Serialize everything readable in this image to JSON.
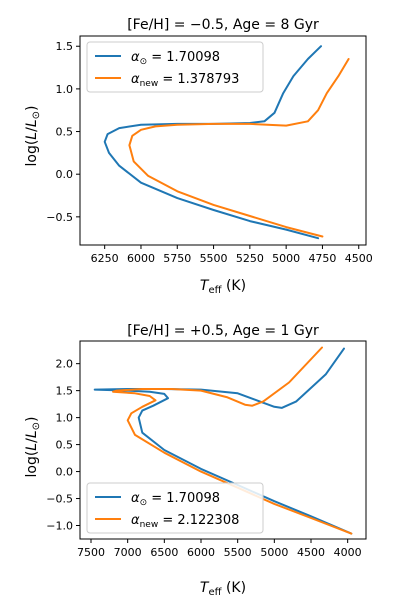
{
  "chart_data": [
    {
      "type": "line",
      "title": "[Fe/H] = −0.5,  Age = 8 Gyr",
      "xlabel": "T_eff (K)",
      "ylabel": "log(L/L⊙)",
      "x_inverted": true,
      "xlim": [
        6420,
        4450
      ],
      "ylim": [
        -0.83,
        1.62
      ],
      "xticks": [
        6250,
        6000,
        5750,
        5500,
        5250,
        5000,
        4750,
        4500
      ],
      "xtick_labels": [
        "6250",
        "6000",
        "5750",
        "5500",
        "5250",
        "5000",
        "4750",
        "4500"
      ],
      "yticks": [
        -0.5,
        0.0,
        0.5,
        1.0,
        1.5
      ],
      "ytick_labels": [
        "−0.5",
        "0.0",
        "0.5",
        "1.0",
        "1.5"
      ],
      "legend_position": "upper-left",
      "series": [
        {
          "name": "α⊙ = 1.70098",
          "label_parts": {
            "symbol": "α",
            "sub": "⊙",
            "value": "= 1.70098"
          },
          "color": "#1f77b4",
          "x": [
            4780,
            5000,
            5250,
            5500,
            5750,
            6000,
            6150,
            6220,
            6250,
            6230,
            6150,
            6000,
            5750,
            5500,
            5250,
            5150,
            5080,
            5020,
            4950,
            4850,
            4760
          ],
          "y": [
            -0.75,
            -0.65,
            -0.55,
            -0.42,
            -0.28,
            -0.1,
            0.1,
            0.25,
            0.38,
            0.47,
            0.54,
            0.58,
            0.59,
            0.59,
            0.6,
            0.62,
            0.72,
            0.95,
            1.15,
            1.35,
            1.5
          ]
        },
        {
          "name": "αnew = 1.378793",
          "label_parts": {
            "symbol": "α",
            "sub": "new",
            "value": "= 1.378793"
          },
          "color": "#ff7f0e",
          "x": [
            4750,
            5000,
            5250,
            5500,
            5750,
            5950,
            6050,
            6080,
            6060,
            6000,
            5900,
            5750,
            5500,
            5250,
            5000,
            4850,
            4780,
            4720,
            4640,
            4570
          ],
          "y": [
            -0.73,
            -0.62,
            -0.49,
            -0.36,
            -0.2,
            -0.02,
            0.15,
            0.34,
            0.45,
            0.52,
            0.56,
            0.58,
            0.59,
            0.59,
            0.57,
            0.62,
            0.75,
            0.95,
            1.15,
            1.35
          ]
        }
      ]
    },
    {
      "type": "line",
      "title": "[Fe/H] = +0.5,  Age = 1 Gyr",
      "xlabel": "T_eff (K)",
      "ylabel": "log(L/L⊙)",
      "x_inverted": true,
      "xlim": [
        7650,
        3750
      ],
      "ylim": [
        -1.25,
        2.42
      ],
      "xticks": [
        7500,
        7000,
        6500,
        6000,
        5500,
        5000,
        4500,
        4000
      ],
      "xtick_labels": [
        "7500",
        "7000",
        "6500",
        "6000",
        "5500",
        "5000",
        "4500",
        "4000"
      ],
      "yticks": [
        -1.0,
        -0.5,
        0.0,
        0.5,
        1.0,
        1.5,
        2.0
      ],
      "ytick_labels": [
        "−1.0",
        "−0.5",
        "0.0",
        "0.5",
        "1.0",
        "1.5",
        "2.0"
      ],
      "legend_position": "lower-left",
      "series": [
        {
          "name": "α⊙ = 1.70098",
          "label_parts": {
            "symbol": "α",
            "sub": "⊙",
            "value": "= 1.70098"
          },
          "color": "#1f77b4",
          "x": [
            3950,
            4500,
            5000,
            5500,
            6000,
            6500,
            6800,
            6850,
            6800,
            6650,
            6450,
            6500,
            6700,
            7000,
            7450,
            7000,
            6500,
            6000,
            5500,
            5200,
            5000,
            4900,
            4700,
            4300,
            4050
          ],
          "y": [
            -1.15,
            -0.83,
            -0.55,
            -0.25,
            0.05,
            0.4,
            0.72,
            1.0,
            1.13,
            1.22,
            1.36,
            1.44,
            1.48,
            1.5,
            1.52,
            1.53,
            1.53,
            1.52,
            1.45,
            1.3,
            1.2,
            1.18,
            1.3,
            1.8,
            2.28
          ]
        },
        {
          "name": "αnew = 2.122308",
          "label_parts": {
            "symbol": "α",
            "sub": "new",
            "value": "= 2.122308"
          },
          "color": "#ff7f0e",
          "x": [
            3950,
            4500,
            5000,
            5500,
            6000,
            6500,
            6900,
            7000,
            6950,
            6800,
            6620,
            6700,
            6900,
            7200,
            7150,
            6800,
            6400,
            6000,
            5650,
            5400,
            5300,
            5150,
            4800,
            4350
          ],
          "y": [
            -1.15,
            -0.86,
            -0.6,
            -0.3,
            0.0,
            0.35,
            0.68,
            0.95,
            1.08,
            1.2,
            1.32,
            1.4,
            1.45,
            1.48,
            1.5,
            1.53,
            1.53,
            1.5,
            1.38,
            1.24,
            1.22,
            1.3,
            1.65,
            2.3
          ]
        }
      ]
    }
  ]
}
